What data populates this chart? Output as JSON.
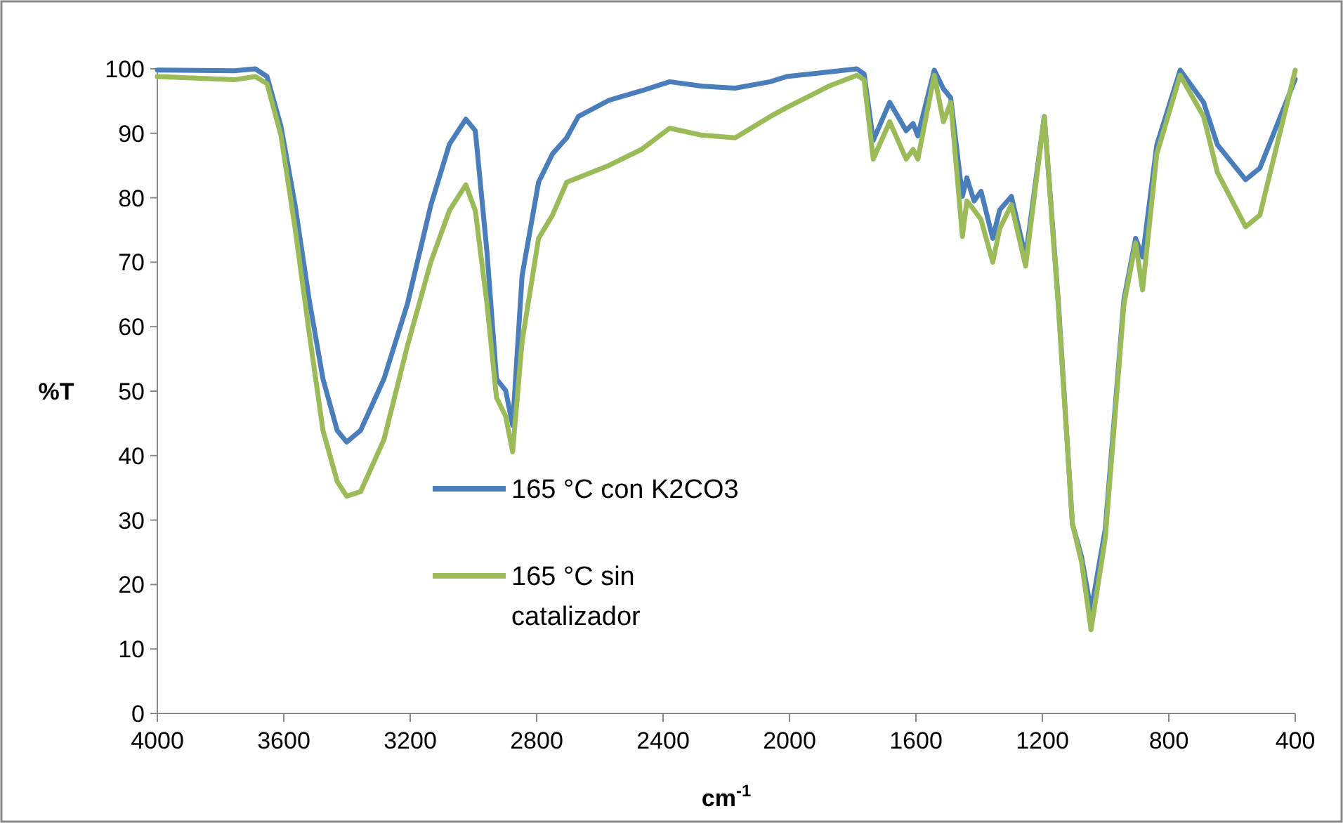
{
  "chart_data": {
    "type": "line",
    "xlabel": "cm$^{-1}$",
    "ylabel": "%T",
    "xlim": [
      4000,
      400
    ],
    "xticks": [
      4000,
      3600,
      3200,
      2800,
      2400,
      2000,
      1600,
      1200,
      800,
      400
    ],
    "ylim": [
      0,
      100
    ],
    "yticks": [
      0,
      10,
      20,
      30,
      40,
      50,
      60,
      70,
      80,
      90,
      100
    ],
    "grid": false,
    "legend": "center",
    "marker": "none",
    "line_style": "solid",
    "series": [
      {
        "name": "165 °C con K2CO3",
        "color": "#4a7ebb",
        "x": [
          4000,
          3757,
          3690,
          3653,
          3609,
          3564,
          3520,
          3476,
          3431,
          3401,
          3357,
          3283,
          3209,
          3135,
          3076,
          3024,
          2994,
          2957,
          2927,
          2898,
          2876,
          2846,
          2794,
          2750,
          2705,
          2668,
          2572,
          2468,
          2379,
          2276,
          2172,
          2061,
          2009,
          1876,
          1787,
          1764,
          1735,
          1683,
          1631,
          1609,
          1594,
          1542,
          1513,
          1490,
          1453,
          1439,
          1416,
          1394,
          1357,
          1335,
          1298,
          1253,
          1194,
          1150,
          1105,
          1076,
          1046,
          1001,
          942,
          905,
          883,
          838,
          764,
          690,
          646,
          557,
          512,
          400
        ],
        "values": [
          99.8,
          99.7,
          100,
          98.8,
          91.1,
          78.8,
          64.3,
          51.9,
          43.9,
          42.1,
          43.9,
          51.9,
          63.5,
          78.8,
          88.3,
          92.2,
          90.4,
          71.5,
          51.9,
          50.1,
          44.7,
          67.9,
          82.4,
          86.8,
          89.3,
          92.6,
          95.1,
          96.6,
          98,
          97.3,
          97,
          98,
          98.8,
          99.5,
          100,
          99.2,
          88.9,
          94.8,
          90.4,
          91.5,
          89.6,
          99.8,
          96.9,
          95.5,
          80.2,
          83.1,
          79.5,
          81,
          73.7,
          78.1,
          80.2,
          70.8,
          92.6,
          64.2,
          29.4,
          24.3,
          15.9,
          28.6,
          64.2,
          73.7,
          70.8,
          88.2,
          99.8,
          94.8,
          88.2,
          82.8,
          84.6,
          98.4
        ]
      },
      {
        "name": "165 °C sin catalizador",
        "color": "#9bbb59",
        "x": [
          4000,
          3757,
          3690,
          3653,
          3609,
          3564,
          3520,
          3476,
          3431,
          3401,
          3357,
          3283,
          3209,
          3135,
          3076,
          3024,
          2994,
          2957,
          2927,
          2898,
          2876,
          2846,
          2794,
          2750,
          2705,
          2572,
          2468,
          2379,
          2276,
          2172,
          2061,
          2009,
          1876,
          1787,
          1764,
          1735,
          1683,
          1631,
          1609,
          1594,
          1542,
          1513,
          1490,
          1453,
          1439,
          1416,
          1394,
          1357,
          1335,
          1298,
          1253,
          1194,
          1150,
          1105,
          1076,
          1046,
          1001,
          942,
          905,
          883,
          838,
          764,
          690,
          646,
          557,
          512,
          400
        ],
        "values": [
          98.8,
          98.3,
          98.8,
          97.7,
          89.7,
          75.2,
          59.2,
          43.9,
          36,
          33.7,
          34.4,
          42.5,
          57,
          70,
          78,
          82,
          78,
          63.5,
          49,
          46.1,
          40.6,
          57.7,
          73.7,
          77.3,
          82.4,
          85,
          87.5,
          90.8,
          89.7,
          89.3,
          92.6,
          94,
          97.3,
          99,
          98.3,
          86,
          91.8,
          86,
          87.5,
          86,
          99,
          91.8,
          94.8,
          74,
          79.5,
          78.1,
          76.6,
          70,
          75.2,
          78.9,
          69.4,
          92.6,
          63.5,
          29.4,
          23.5,
          13,
          27.2,
          63.5,
          73,
          65.7,
          86.8,
          99,
          92.6,
          83.9,
          75.5,
          77.3,
          99.8
        ]
      }
    ]
  }
}
